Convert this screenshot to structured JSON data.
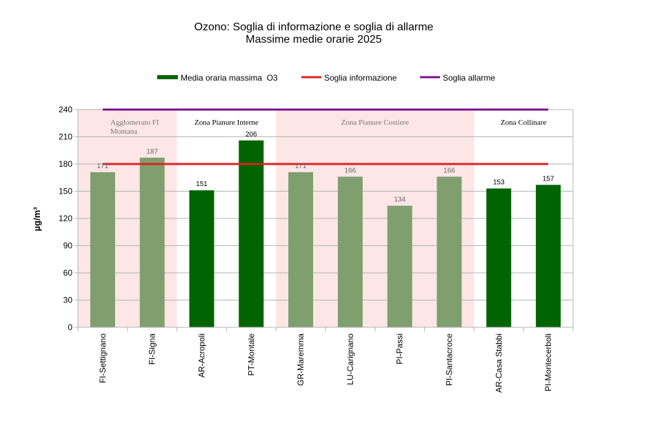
{
  "chart_data": {
    "type": "bar",
    "title": "Ozono: Soglia di informazione e soglia di allarme",
    "subtitle": "Massime medie orarie 2025",
    "ylabel": "µg/m³",
    "ylim": [
      0,
      240
    ],
    "yticks": [
      "0",
      "30",
      "60",
      "90",
      "120",
      "150",
      "180",
      "210",
      "240"
    ],
    "grid": true,
    "legend_position": "top",
    "categories": [
      "FI-Settignano",
      "FI-Signa",
      "AR-Acropoli",
      "PT-Montale",
      "GR-Maremma",
      "LU-Carignano",
      "PI-Passi",
      "PI-Santacroce",
      "AR-Casa Stabbi",
      "PI-Montecerboli"
    ],
    "series": [
      {
        "name": "Media oraria massima  O3",
        "values": [
          171,
          187,
          151,
          206,
          171,
          166,
          134,
          166,
          153,
          157
        ],
        "labels": [
          "171",
          "187",
          "151",
          "206",
          "171",
          "166",
          "134",
          "166",
          "153",
          "157"
        ],
        "color": "#006400",
        "shaded_color": "#7f9f6f"
      }
    ],
    "thresholds": [
      {
        "name": "Soglia informazione",
        "value": 180,
        "color": "#dd2222"
      },
      {
        "name": "Soglia allarme",
        "value": 240,
        "color": "#7a0f8c"
      }
    ],
    "zones": [
      {
        "label": "Agglomerato FI Montana",
        "label_lines": [
          "Agglomerato FI",
          "Montana"
        ],
        "start": 0,
        "end": 2,
        "shaded": true,
        "color": "#fde6e6"
      },
      {
        "label": "Zona Pianure Interne",
        "label_lines": [
          "Zona Pianure Interne"
        ],
        "start": 2,
        "end": 4,
        "shaded": false
      },
      {
        "label": "Zona Pianure  Costiere",
        "label_lines": [
          "Zona Pianure  Costiere"
        ],
        "start": 4,
        "end": 8,
        "shaded": true,
        "color": "#fde6e6"
      },
      {
        "label": "Zona Collinare",
        "label_lines": [
          "Zona Collinare"
        ],
        "start": 8,
        "end": 10,
        "shaded": false
      }
    ]
  }
}
